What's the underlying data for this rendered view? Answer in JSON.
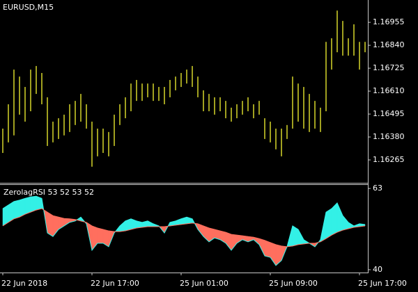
{
  "chart_data": [
    {
      "type": "ohlc",
      "title": "EURUSD,M15",
      "color": "#e6e62e",
      "high": [
        1.16422,
        1.16544,
        1.16718,
        1.16683,
        1.16631,
        1.16718,
        1.16736,
        1.16701,
        1.16579,
        1.16457,
        1.16474,
        1.16492,
        1.16544,
        1.16561,
        1.16596,
        1.16544,
        1.16457,
        1.16422,
        1.16422,
        1.16405,
        1.16492,
        1.16544,
        1.16579,
        1.16648,
        1.16666,
        1.16648,
        1.16648,
        1.16648,
        1.16631,
        1.16631,
        1.16666,
        1.16683,
        1.16701,
        1.16718,
        1.16736,
        1.16683,
        1.16614,
        1.16596,
        1.16579,
        1.16579,
        1.16561,
        1.16527,
        1.16544,
        1.16561,
        1.16579,
        1.16544,
        1.16561,
        1.16474,
        1.16457,
        1.16422,
        1.16422,
        1.1644,
        1.16683,
        1.16648,
        1.16631,
        1.16596,
        1.16561,
        1.16527,
        1.16857,
        1.16875,
        1.17014,
        1.16962,
        1.16875,
        1.16945,
        1.16857,
        1.16857
      ],
      "low": [
        1.163,
        1.16353,
        1.16388,
        1.16492,
        1.16457,
        1.16509,
        1.16596,
        1.16544,
        1.16335,
        1.16353,
        1.1637,
        1.16388,
        1.16405,
        1.1644,
        1.16457,
        1.16422,
        1.16231,
        1.16283,
        1.163,
        1.16283,
        1.16335,
        1.1644,
        1.16474,
        1.16509,
        1.16561,
        1.16561,
        1.16579,
        1.16561,
        1.16561,
        1.16544,
        1.16579,
        1.16614,
        1.16631,
        1.16648,
        1.16631,
        1.16579,
        1.16509,
        1.16509,
        1.16492,
        1.16509,
        1.16474,
        1.16457,
        1.16474,
        1.16492,
        1.16509,
        1.16474,
        1.16492,
        1.1637,
        1.16353,
        1.16318,
        1.16283,
        1.1637,
        1.16422,
        1.16457,
        1.16422,
        1.16405,
        1.16422,
        1.16405,
        1.16509,
        1.16718,
        1.16805,
        1.16788,
        1.16788,
        1.16788,
        1.16718,
        1.16805
      ],
      "xlim": [
        -0.5,
        65.5
      ],
      "ylim": [
        1.1615,
        1.17067
      ],
      "yticks": [
        1.16955,
        {
          "value": 1.1684,
          "label": "1.16840"
        },
        1.16725,
        {
          "value": 1.1661,
          "label": "1.16610"
        },
        1.16495,
        {
          "value": 1.1638,
          "label": "1.16380"
        },
        1.16265
      ]
    },
    {
      "type": "line",
      "title": "ZerolagRSI 53 52 53 52",
      "fill_between": true,
      "series": [
        {
          "color": "#33f0e6",
          "values": [
            57.3,
            58.3,
            59.3,
            59.7,
            60.2,
            60.6,
            60.8,
            60.2,
            50.4,
            49.4,
            51.4,
            52.4,
            53.4,
            53.8,
            54.9,
            53.0,
            45.5,
            47.5,
            47.5,
            46.5,
            50.4,
            52.4,
            53.8,
            54.4,
            53.8,
            53.4,
            53.8,
            53.0,
            52.4,
            50.4,
            53.4,
            53.8,
            54.4,
            54.9,
            54.4,
            51.4,
            49.4,
            47.9,
            49.0,
            48.5,
            47.5,
            45.5,
            47.5,
            48.5,
            47.9,
            48.5,
            47.1,
            43.9,
            43.5,
            41.2,
            42.6,
            46.5,
            52.4,
            51.4,
            48.5,
            47.5,
            46.5,
            48.5,
            56.3,
            57.3,
            58.9,
            55.3,
            53.4,
            52.4,
            53.0,
            52.8
          ]
        },
        {
          "color": "#ff6f5e",
          "values": [
            52.4,
            53.4,
            54.4,
            54.9,
            55.7,
            56.3,
            56.9,
            57.3,
            56.3,
            55.3,
            54.9,
            54.5,
            54.4,
            54.2,
            53.8,
            53.4,
            52.4,
            51.8,
            51.4,
            51.0,
            50.8,
            50.8,
            51.0,
            51.4,
            51.8,
            52.0,
            52.2,
            52.2,
            52.2,
            52.2,
            52.4,
            52.6,
            52.8,
            53.0,
            53.2,
            53.0,
            52.4,
            51.8,
            51.4,
            51.0,
            50.6,
            50.0,
            49.8,
            49.6,
            49.4,
            49.2,
            48.8,
            48.3,
            47.7,
            47.1,
            46.7,
            46.5,
            46.7,
            47.1,
            47.3,
            47.5,
            47.5,
            47.9,
            48.8,
            49.8,
            50.6,
            51.2,
            51.6,
            52.0,
            52.2,
            52.4
          ]
        }
      ],
      "xlim": [
        -0.5,
        65.5
      ],
      "xticks": [
        {
          "value": 0,
          "label": "22 Jun 2018"
        },
        {
          "value": 16,
          "label": "22 Jun 17:00"
        },
        {
          "value": 32,
          "label": "25 Jun 01:00"
        },
        {
          "value": 48,
          "label": "25 Jun 09:00"
        },
        {
          "value": 64,
          "label": "25 Jun 17:00"
        }
      ],
      "ylim": [
        39.2,
        64.2
      ],
      "yticks": [
        40,
        63
      ]
    }
  ]
}
